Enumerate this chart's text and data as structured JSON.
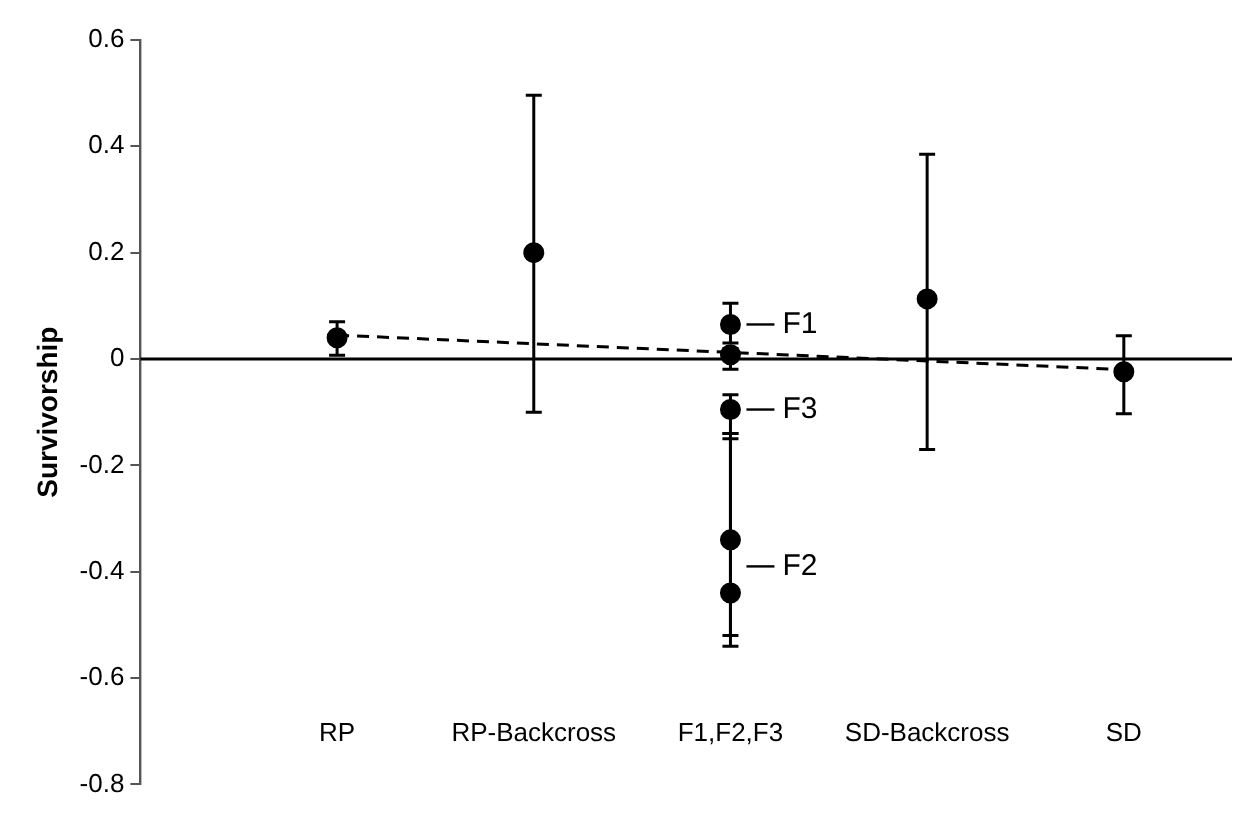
{
  "chart_data": {
    "type": "scatter",
    "ylabel": "Survivorship",
    "categories": [
      "RP",
      "RP-Backcross",
      "F1,F2,F3",
      "SD-Backcross",
      "SD"
    ],
    "series": [
      {
        "color": "#000000",
        "marker": "circle",
        "x": [
          "RP",
          "RP-Backcross",
          "F1,F2,F3",
          "F1,F2,F3",
          "F1,F2,F3",
          "F1,F2,F3",
          "F1,F2,F3",
          "SD-Backcross",
          "SD"
        ],
        "values": [
          0.04,
          0.2,
          0.065,
          0.008,
          -0.095,
          -0.34,
          -0.44,
          0.113,
          -0.024
        ],
        "errors": [
          [
            0.007,
            0.07
          ],
          [
            -0.1,
            0.496
          ],
          [
            0.03,
            0.105
          ],
          [
            -0.019,
            0.02
          ],
          [
            -0.14,
            -0.067
          ],
          [
            -0.52,
            -0.15
          ],
          [
            -0.54,
            -0.14
          ],
          [
            -0.17,
            0.385
          ],
          [
            -0.103,
            0.044
          ]
        ]
      },
      {
        "type": "line",
        "color": "#000000",
        "marker": "none",
        "line_style": "dashed",
        "x": [
          "RP",
          "SD"
        ],
        "values": [
          0.045,
          -0.02
        ]
      }
    ],
    "ylim": [
      -0.8,
      0.6
    ],
    "yticks": [
      -0.8,
      -0.6,
      -0.4,
      -0.2,
      0,
      0.2,
      0.4,
      0.6
    ],
    "ref_lines": [
      {
        "axis": "y",
        "value": 0,
        "color": "#000000"
      }
    ],
    "annotations": [
      {
        "text": "F1",
        "x": "F1,F2,F3",
        "y": 0.065
      },
      {
        "text": "F2",
        "x": "F1,F2,F3",
        "y": -0.39
      },
      {
        "text": "F3",
        "x": "F1,F2,F3",
        "y": -0.095
      }
    ],
    "grid": false,
    "legend": false
  }
}
